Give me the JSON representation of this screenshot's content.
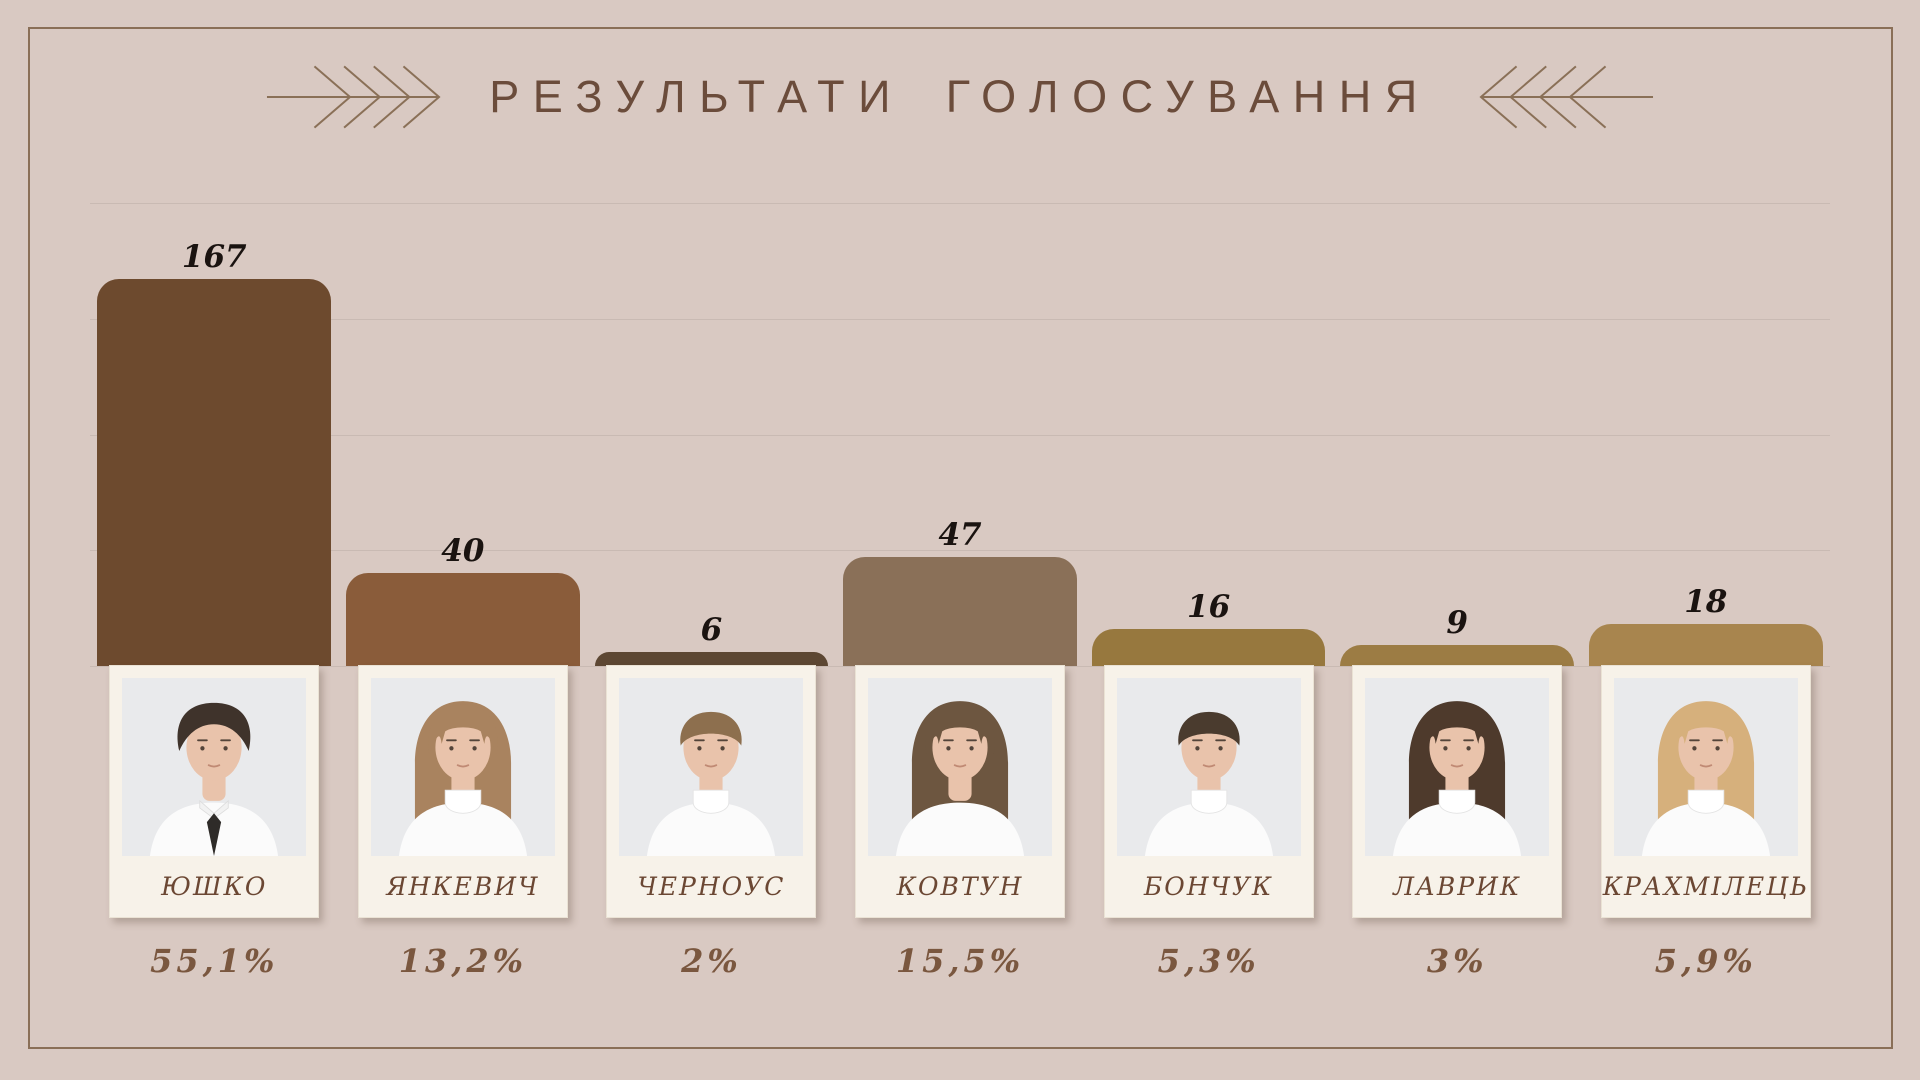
{
  "page": {
    "title": "РЕЗУЛЬТАТИ ГОЛОСУВАННЯ"
  },
  "colors": {
    "background": "#d9c9c2",
    "frame_border": "#8a6f57",
    "title_text": "#6b4c3b",
    "arrow_stroke": "#8a7057",
    "gridline": "#c9bab3",
    "card_background": "#f7f2e9",
    "name_text": "#6b4733",
    "percent_text": "#7a573f",
    "count_text": "#1a1310"
  },
  "chart_data": {
    "type": "bar",
    "title": "РЕЗУЛЬТАТИ ГОЛОСУВАННЯ",
    "categories": [
      "ЮШКО",
      "ЯНКЕВИЧ",
      "ЧЕРНОУС",
      "КОВТУН",
      "БОНЧУК",
      "ЛАВРИК",
      "КРАХМІЛЕЦЬ"
    ],
    "values": [
      167,
      40,
      6,
      47,
      16,
      9,
      18
    ],
    "percent_labels": [
      "55,1%",
      "13,2%",
      "2%",
      "15,5%",
      "5,3%",
      "3%",
      "5,9%"
    ],
    "bar_colors": [
      "#6d4a2e",
      "#8a5c3a",
      "#5d4733",
      "#8a7058",
      "#97783e",
      "#9c7c44",
      "#a8854e"
    ],
    "xlabel": "",
    "ylabel": "",
    "ylim": [
      0,
      200
    ],
    "gridline_values": [
      200,
      150,
      100,
      50,
      0
    ],
    "grid": "on",
    "legend": "none"
  },
  "candidates": [
    {
      "name": "ЮШКО",
      "votes": 167,
      "percent": "55,1%",
      "bar_color": "#6d4a2e",
      "photo": {
        "description": "boy-dark-fluffy-hair-white-shirt-black-tie",
        "hair_style": "fluffy",
        "outfit": "shirt-tie",
        "hair_color": "#3f332b"
      }
    },
    {
      "name": "ЯНКЕВИЧ",
      "votes": 40,
      "percent": "13,2%",
      "bar_color": "#8a5c3a",
      "photo": {
        "description": "girl-long-golden-brown-hair-white-turtleneck",
        "hair_style": "long",
        "outfit": "turtleneck",
        "hair_color": "#a9835f"
      }
    },
    {
      "name": "ЧЕРНОУС",
      "votes": 6,
      "percent": "2%",
      "bar_color": "#5d4733",
      "photo": {
        "description": "boy-short-light-brown-hair-white-turtleneck",
        "hair_style": "short",
        "outfit": "turtleneck",
        "hair_color": "#8d6f4e"
      }
    },
    {
      "name": "КОВТУН",
      "votes": 47,
      "percent": "15,5%",
      "bar_color": "#8a7058",
      "photo": {
        "description": "girl-long-brown-hair-white-top",
        "hair_style": "long",
        "outfit": "tshirt",
        "hair_color": "#6d5640"
      }
    },
    {
      "name": "БОНЧУК",
      "votes": 16,
      "percent": "5,3%",
      "bar_color": "#97783e",
      "photo": {
        "description": "boy-short-dark-hair-white-turtleneck",
        "hair_style": "short",
        "outfit": "turtleneck",
        "hair_color": "#4a3b2e"
      }
    },
    {
      "name": "ЛАВРИК",
      "votes": 9,
      "percent": "3%",
      "bar_color": "#9c7c44",
      "photo": {
        "description": "girl-long-dark-brown-hair-white-turtleneck",
        "hair_style": "long",
        "outfit": "turtleneck",
        "hair_color": "#4e3a2c"
      }
    },
    {
      "name": "КРАХМІЛЕЦЬ",
      "votes": 18,
      "percent": "5,9%",
      "bar_color": "#a8854e",
      "photo": {
        "description": "girl-long-blonde-hair-white-turtleneck",
        "hair_style": "long",
        "outfit": "turtleneck",
        "hair_color": "#d6b07c"
      }
    }
  ]
}
